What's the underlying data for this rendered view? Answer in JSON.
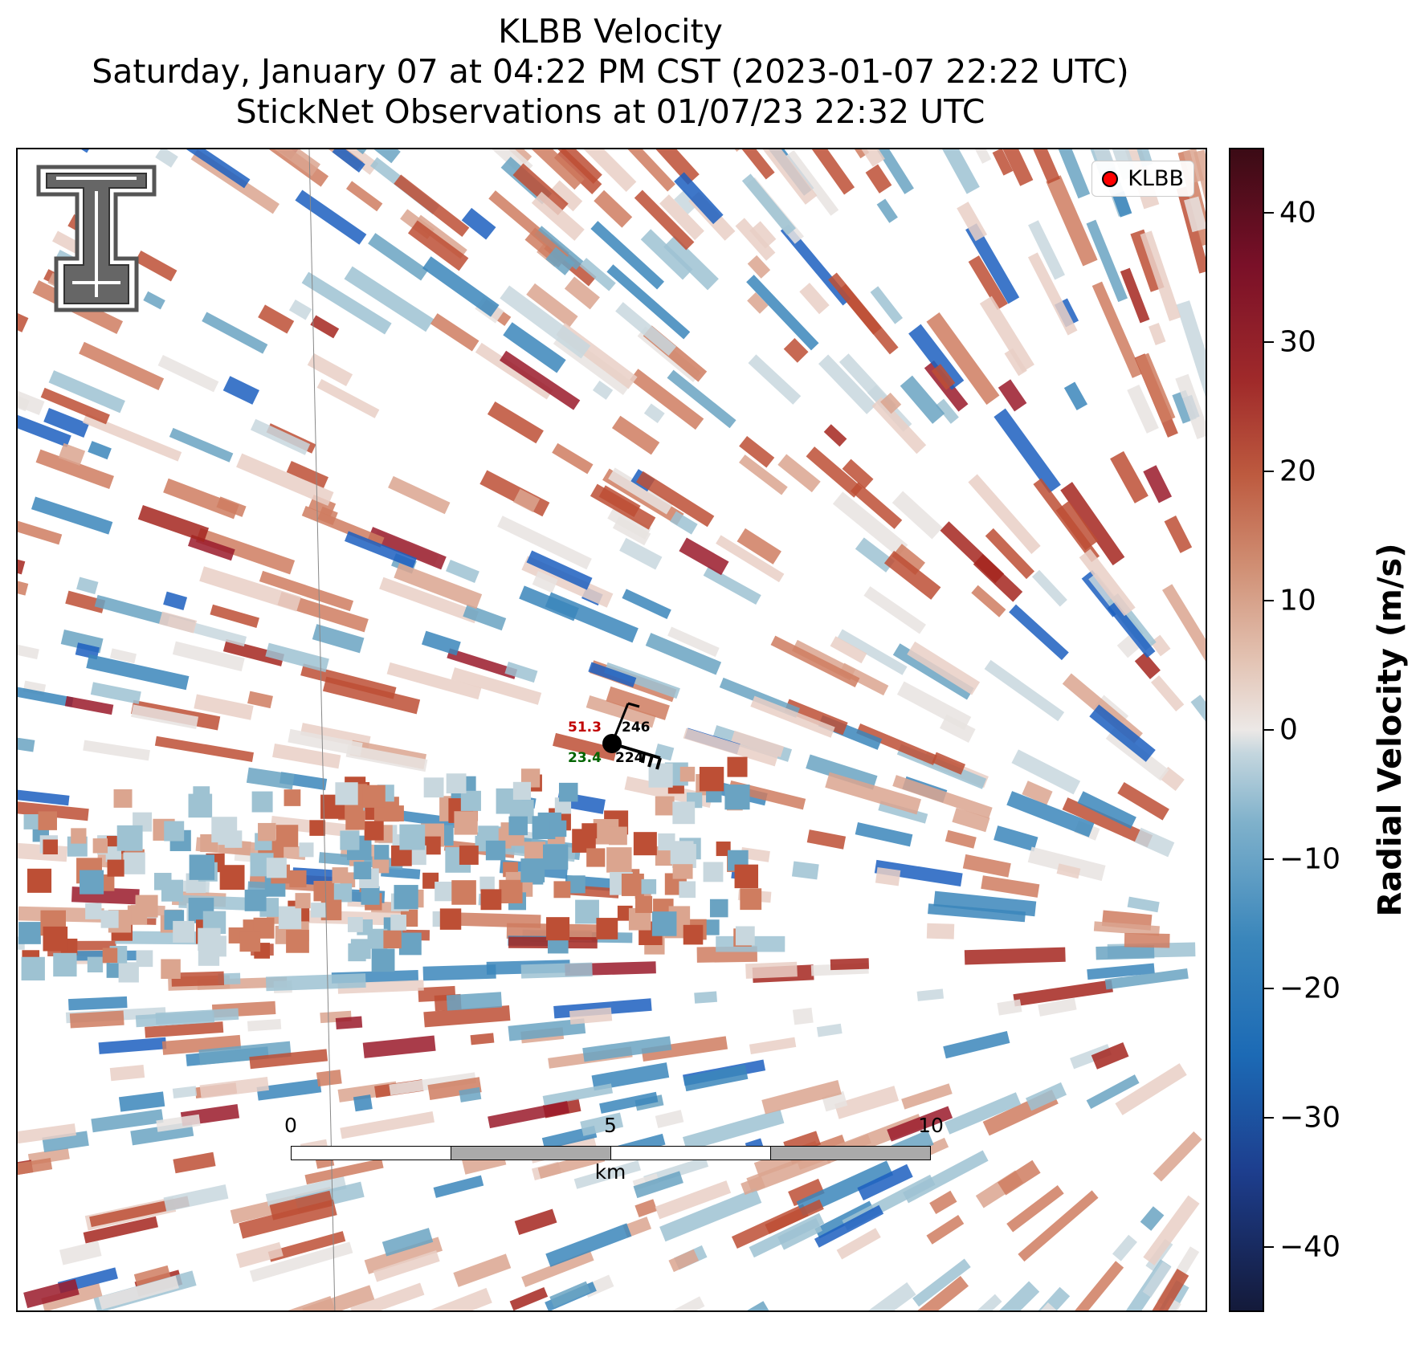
{
  "titles": {
    "line1": "KLBB Velocity",
    "line2": "Saturday, January 07 at 04:22 PM CST (2023-01-07 22:22 UTC)",
    "line3": "StickNet Observations at 01/07/23 22:32 UTC"
  },
  "legend": {
    "label": "KLBB",
    "marker_color": "#ff0000"
  },
  "logo": {
    "icon": "texas-tech-double-t-logo"
  },
  "station": {
    "temperature": "51.3",
    "dewpoint": "23.4",
    "pressure": "246",
    "wind_dir_text": "224",
    "temperature_color": "#c00000",
    "dewpoint_color": "#006400"
  },
  "scale_bar": {
    "unit": "km",
    "labels": [
      "0",
      "5",
      "10"
    ]
  },
  "colorbar": {
    "title": "Radial Velocity (m/s)",
    "range": [
      -45,
      45
    ],
    "ticks": [
      "40",
      "30",
      "20",
      "10",
      "0",
      "−10",
      "−20",
      "−30",
      "−40"
    ]
  }
}
